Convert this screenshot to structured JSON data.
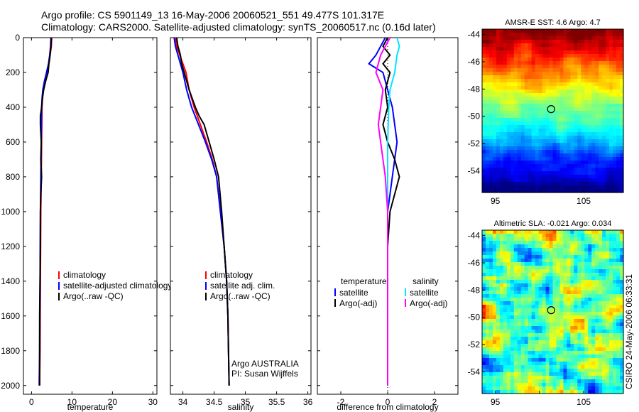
{
  "header": {
    "line1": "Argo profile: CS 5901149_13 16-May-2006 20060521_551 49.477S 101.317E",
    "line2": "Climatology: CARS2000. Satellite-adjusted climatology: synTS_20060517.nc (0.16d later)"
  },
  "colors": {
    "climatology": "#ff0000",
    "satellite": "#0000ff",
    "argo": "#000000",
    "sat_salinity": "#00e5ff",
    "argo_salinity": "#ff00ff"
  },
  "chart_data": [
    {
      "type": "line",
      "id": "temperature",
      "xlabel": "temperature",
      "ylabel": "",
      "xlim": [
        -2,
        31
      ],
      "ylim": [
        2050,
        0
      ],
      "xticks": [
        0,
        10,
        20,
        30
      ],
      "yticks": [
        0,
        200,
        400,
        600,
        800,
        1000,
        1200,
        1400,
        1600,
        1800,
        2000
      ],
      "legend": {
        "position": "lower-right",
        "entries": [
          "climatology",
          "satellite-adjusted climatology",
          "Argo(..raw -QC)"
        ]
      },
      "series": [
        {
          "name": "climatology",
          "color": "#ff0000",
          "x": [
            5.0,
            4.9,
            4.6,
            4.3,
            3.8,
            3.3,
            2.9,
            2.7,
            2.6,
            2.55,
            2.5,
            2.45,
            2.4,
            2.35,
            2.3,
            2.25,
            2.2,
            2.15,
            2.1,
            2.05,
            2.0
          ],
          "y": [
            0,
            50,
            100,
            150,
            200,
            250,
            300,
            350,
            400,
            500,
            600,
            700,
            800,
            900,
            1000,
            1200,
            1400,
            1600,
            1800,
            1900,
            2000
          ]
        },
        {
          "name": "satellite-adjusted climatology",
          "color": "#0000ff",
          "x": [
            4.8,
            4.7,
            4.5,
            4.2,
            3.7,
            3.2,
            2.8,
            2.6,
            2.5,
            2.45,
            2.4,
            2.35,
            2.3,
            2.25,
            2.2,
            2.15,
            2.1,
            2.05,
            2.0,
            1.95,
            1.9
          ],
          "y": [
            0,
            50,
            100,
            150,
            200,
            250,
            300,
            350,
            400,
            500,
            600,
            700,
            800,
            900,
            1000,
            1200,
            1400,
            1600,
            1800,
            1900,
            2000
          ]
        },
        {
          "name": "Argo(..raw -QC)",
          "color": "#000000",
          "x": [
            4.9,
            4.8,
            4.6,
            4.3,
            4.1,
            3.5,
            3.0,
            2.7,
            2.5,
            2.2,
            2.2,
            2.4,
            2.3,
            2.5,
            2.3,
            2.2,
            2.2,
            2.1,
            2.0,
            2.0
          ],
          "y": [
            0,
            50,
            100,
            150,
            200,
            250,
            300,
            350,
            400,
            450,
            500,
            600,
            700,
            800,
            900,
            1000,
            1200,
            1400,
            1600,
            2000
          ]
        }
      ]
    },
    {
      "type": "line",
      "id": "salinity",
      "xlabel": "salinity",
      "ylabel": "",
      "xlim": [
        33.8,
        36.05
      ],
      "ylim": [
        2050,
        0
      ],
      "xticks": [
        34,
        34.5,
        35,
        35.5,
        36
      ],
      "xticklabels": [
        "34",
        "34.5",
        "35",
        "35.5",
        "36"
      ],
      "legend": {
        "position": "lower-right",
        "entries": [
          "climatology",
          "satellite adj. clim.",
          "Argo(..raw -QC)"
        ]
      },
      "annotation": [
        "Argo AUSTRALIA",
        "PI: Susan Wijffels"
      ],
      "series": [
        {
          "name": "climatology",
          "color": "#ff0000",
          "x": [
            33.88,
            33.9,
            33.95,
            34.0,
            34.05,
            34.1,
            34.18,
            34.28,
            34.38,
            34.47,
            34.54,
            34.6,
            34.66,
            34.7,
            34.72,
            34.73,
            34.74
          ],
          "y": [
            0,
            50,
            100,
            150,
            200,
            300,
            400,
            500,
            600,
            700,
            800,
            1000,
            1200,
            1400,
            1600,
            1800,
            2000
          ]
        },
        {
          "name": "satellite adj. clim.",
          "color": "#0000ff",
          "x": [
            33.86,
            33.88,
            33.92,
            33.96,
            34.0,
            34.06,
            34.14,
            34.25,
            34.36,
            34.46,
            34.54,
            34.6,
            34.66,
            34.7,
            34.72,
            34.73,
            34.74
          ],
          "y": [
            0,
            50,
            100,
            150,
            200,
            300,
            400,
            500,
            600,
            700,
            800,
            1000,
            1200,
            1400,
            1600,
            1800,
            2000
          ]
        },
        {
          "name": "Argo(..raw -QC)",
          "color": "#000000",
          "x": [
            33.9,
            33.92,
            33.96,
            33.98,
            34.02,
            34.06,
            34.1,
            34.15,
            34.2,
            34.26,
            34.34,
            34.42,
            34.5,
            34.57,
            34.62,
            34.66,
            34.7,
            34.72,
            34.74
          ],
          "y": [
            0,
            50,
            100,
            150,
            200,
            250,
            300,
            350,
            400,
            450,
            500,
            600,
            700,
            800,
            1000,
            1200,
            1400,
            1600,
            2000
          ]
        }
      ]
    },
    {
      "type": "line",
      "id": "difference",
      "xlabel": "difference from climatology",
      "xlim": [
        -3,
        3
      ],
      "ylim": [
        2050,
        0
      ],
      "xticks": [
        -2,
        0,
        2
      ],
      "legend": {
        "position": "lower-center",
        "entries": [
          "temperature",
          "satellite",
          "Argo(-adj)",
          "salinity",
          "satellite",
          "Argo(-adj)"
        ]
      },
      "series": [
        {
          "name": "satellite",
          "color": "#0000ff",
          "x": [
            -0.1,
            -0.3,
            -0.5,
            -0.8,
            -0.2,
            -0.1,
            0.0,
            0.2,
            0.3,
            0.4,
            0.3,
            0.2,
            0.1,
            0.0,
            0.0,
            0.0,
            0.0,
            0.0
          ],
          "y": [
            0,
            50,
            100,
            150,
            200,
            250,
            300,
            400,
            500,
            600,
            700,
            800,
            900,
            1000,
            1200,
            1400,
            1800,
            2000
          ]
        },
        {
          "name": "Argo(-adj)",
          "color": "#000000",
          "x": [
            0.0,
            -0.2,
            0.1,
            -0.2,
            0.1,
            -0.1,
            0.0,
            -0.2,
            0.0,
            0.3,
            0.4,
            0.5,
            0.3,
            0.1,
            0.0,
            0.0,
            0.0,
            0.0
          ],
          "y": [
            0,
            50,
            100,
            150,
            200,
            300,
            400,
            500,
            600,
            700,
            750,
            800,
            900,
            1000,
            1200,
            1400,
            1800,
            2000
          ]
        },
        {
          "name": "satellite",
          "color": "#00e5ff",
          "x": [
            0.4,
            0.5,
            0.4,
            0.3,
            0.1,
            0.05,
            0.0,
            0.0,
            0.0,
            0.0,
            0.0,
            0.0,
            0.0,
            0.0
          ],
          "y": [
            0,
            50,
            100,
            200,
            300,
            400,
            600,
            800,
            1000,
            1200,
            1400,
            1600,
            1800,
            2000
          ]
        },
        {
          "name": "Argo(-adj)",
          "color": "#ff00ff",
          "x": [
            0.1,
            -0.3,
            -0.5,
            -0.2,
            -0.3,
            -0.4,
            -0.3,
            -0.2,
            -0.1,
            0.0,
            0.0,
            0.0
          ],
          "y": [
            0,
            100,
            200,
            300,
            400,
            500,
            600,
            700,
            800,
            1000,
            1400,
            2000
          ]
        }
      ]
    },
    {
      "type": "heatmap",
      "id": "sst",
      "title": "AMSR-E SST: 4.6  Argo: 4.7",
      "xlim": [
        93.5,
        109.5
      ],
      "ylim": [
        -55.6,
        -43.6
      ],
      "xticks": [
        95,
        100,
        105
      ],
      "xticklabels": [
        "95",
        "",
        "105"
      ],
      "yticks": [
        -44,
        -46,
        -48,
        -50,
        -52,
        -54
      ],
      "marker": {
        "x": 101.317,
        "y": -49.477
      }
    },
    {
      "type": "heatmap",
      "id": "sla",
      "title": "Altimetric SLA: -0.021  Argo: 0.034",
      "xlim": [
        93.5,
        109.5
      ],
      "ylim": [
        -55.6,
        -43.6
      ],
      "xticks": [
        95,
        100,
        105
      ],
      "xticklabels": [
        "95",
        "",
        "105"
      ],
      "yticks": [
        -44,
        -46,
        -48,
        -50,
        -52,
        -54
      ],
      "marker": {
        "x": 101.317,
        "y": -49.477
      }
    }
  ],
  "side_label": "CSIRO 24-May-2006 06:33:31"
}
